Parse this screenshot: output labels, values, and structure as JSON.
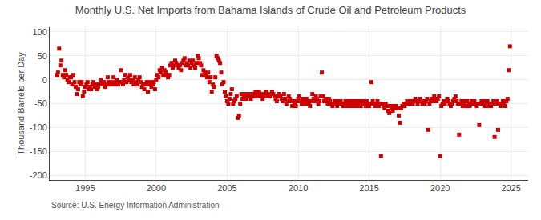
{
  "chart_data": {
    "type": "scatter",
    "title": "Monthly U.S. Net Imports from Bahama Islands of Crude Oil and Petroleum Products",
    "y_label": "Thousand Barrels per Day",
    "annotations": [
      "Source: U.S. Energy Information Administration"
    ],
    "color": "#cc0000",
    "marker": "square",
    "grid": true,
    "xlim": [
      1992.5,
      2026.2
    ],
    "ylim": [
      -210,
      110
    ],
    "xticks": [
      1995,
      2000,
      2005,
      2010,
      2015,
      2020,
      2025
    ],
    "yticks": [
      -200,
      -150,
      -100,
      -50,
      0,
      50,
      100
    ],
    "x": [
      1993.0,
      1993.083,
      1993.167,
      1993.25,
      1993.333,
      1993.417,
      1993.5,
      1993.583,
      1993.667,
      1993.75,
      1993.833,
      1993.917,
      1994.0,
      1994.083,
      1994.167,
      1994.25,
      1994.333,
      1994.417,
      1994.5,
      1994.583,
      1994.667,
      1994.75,
      1994.833,
      1994.917,
      1995.0,
      1995.083,
      1995.167,
      1995.25,
      1995.333,
      1995.417,
      1995.5,
      1995.583,
      1995.667,
      1995.75,
      1995.833,
      1995.917,
      1996.0,
      1996.083,
      1996.167,
      1996.25,
      1996.333,
      1996.417,
      1996.5,
      1996.583,
      1996.667,
      1996.75,
      1996.833,
      1996.917,
      1997.0,
      1997.083,
      1997.167,
      1997.25,
      1997.333,
      1997.417,
      1997.5,
      1997.583,
      1997.667,
      1997.75,
      1997.833,
      1997.917,
      1998.0,
      1998.083,
      1998.167,
      1998.25,
      1998.333,
      1998.417,
      1998.5,
      1998.583,
      1998.667,
      1998.75,
      1998.833,
      1998.917,
      1999.0,
      1999.083,
      1999.167,
      1999.25,
      1999.333,
      1999.417,
      1999.5,
      1999.583,
      1999.667,
      1999.75,
      1999.833,
      1999.917,
      2000.0,
      2000.083,
      2000.167,
      2000.25,
      2000.333,
      2000.417,
      2000.5,
      2000.583,
      2000.667,
      2000.75,
      2000.833,
      2000.917,
      2001.0,
      2001.083,
      2001.167,
      2001.25,
      2001.333,
      2001.417,
      2001.5,
      2001.583,
      2001.667,
      2001.75,
      2001.833,
      2001.917,
      2002.0,
      2002.083,
      2002.167,
      2002.25,
      2002.333,
      2002.417,
      2002.5,
      2002.583,
      2002.667,
      2002.75,
      2002.833,
      2002.917,
      2003.0,
      2003.083,
      2003.167,
      2003.25,
      2003.333,
      2003.417,
      2003.5,
      2003.583,
      2003.667,
      2003.75,
      2003.833,
      2003.917,
      2004.0,
      2004.083,
      2004.167,
      2004.25,
      2004.333,
      2004.417,
      2004.5,
      2004.583,
      2004.667,
      2004.75,
      2004.833,
      2004.917,
      2005.0,
      2005.083,
      2005.167,
      2005.25,
      2005.333,
      2005.417,
      2005.5,
      2005.583,
      2005.667,
      2005.75,
      2005.833,
      2005.917,
      2006.0,
      2006.083,
      2006.167,
      2006.25,
      2006.333,
      2006.417,
      2006.5,
      2006.583,
      2006.667,
      2006.75,
      2006.833,
      2006.917,
      2007.0,
      2007.083,
      2007.167,
      2007.25,
      2007.333,
      2007.417,
      2007.5,
      2007.583,
      2007.667,
      2007.75,
      2007.833,
      2007.917,
      2008.0,
      2008.083,
      2008.167,
      2008.25,
      2008.333,
      2008.417,
      2008.5,
      2008.583,
      2008.667,
      2008.75,
      2008.833,
      2008.917,
      2009.0,
      2009.083,
      2009.167,
      2009.25,
      2009.333,
      2009.417,
      2009.5,
      2009.583,
      2009.667,
      2009.75,
      2009.833,
      2009.917,
      2010.0,
      2010.083,
      2010.167,
      2010.25,
      2010.333,
      2010.417,
      2010.5,
      2010.583,
      2010.667,
      2010.75,
      2010.833,
      2010.917,
      2011.0,
      2011.083,
      2011.167,
      2011.25,
      2011.333,
      2011.417,
      2011.5,
      2011.583,
      2011.667,
      2011.75,
      2011.833,
      2011.917,
      2012.0,
      2012.083,
      2012.167,
      2012.25,
      2012.333,
      2012.417,
      2012.5,
      2012.583,
      2012.667,
      2012.75,
      2012.833,
      2012.917,
      2013.0,
      2013.083,
      2013.167,
      2013.25,
      2013.333,
      2013.417,
      2013.5,
      2013.583,
      2013.667,
      2013.75,
      2013.833,
      2013.917,
      2014.0,
      2014.083,
      2014.167,
      2014.25,
      2014.333,
      2014.417,
      2014.5,
      2014.583,
      2014.667,
      2014.75,
      2014.833,
      2014.917,
      2015.0,
      2015.083,
      2015.167,
      2015.25,
      2015.333,
      2015.417,
      2015.5,
      2015.583,
      2015.667,
      2015.75,
      2015.833,
      2015.917,
      2016.0,
      2016.083,
      2016.167,
      2016.25,
      2016.333,
      2016.417,
      2016.5,
      2016.583,
      2016.667,
      2016.75,
      2016.833,
      2016.917,
      2017.0,
      2017.083,
      2017.167,
      2017.25,
      2017.333,
      2017.417,
      2017.5,
      2017.583,
      2017.667,
      2017.75,
      2017.833,
      2017.917,
      2018.0,
      2018.083,
      2018.167,
      2018.25,
      2018.333,
      2018.417,
      2018.5,
      2018.583,
      2018.667,
      2018.75,
      2018.833,
      2018.917,
      2019.0,
      2019.083,
      2019.167,
      2019.25,
      2019.333,
      2019.417,
      2019.5,
      2019.583,
      2019.667,
      2019.75,
      2019.833,
      2019.917,
      2020.0,
      2020.083,
      2020.167,
      2020.25,
      2020.333,
      2020.417,
      2020.5,
      2020.583,
      2020.667,
      2020.75,
      2020.833,
      2020.917,
      2021.0,
      2021.083,
      2021.167,
      2021.25,
      2021.333,
      2021.417,
      2021.5,
      2021.583,
      2021.667,
      2021.75,
      2021.833,
      2021.917,
      2022.0,
      2022.083,
      2022.167,
      2022.25,
      2022.333,
      2022.417,
      2022.5,
      2022.583,
      2022.667,
      2022.75,
      2022.833,
      2022.917,
      2023.0,
      2023.083,
      2023.167,
      2023.25,
      2023.333,
      2023.417,
      2023.5,
      2023.583,
      2023.667,
      2023.75,
      2023.833,
      2023.917,
      2024.0,
      2024.083,
      2024.167,
      2024.25,
      2024.333,
      2024.417,
      2024.5,
      2024.583,
      2024.667,
      2024.75,
      2024.833,
      2024.917
    ],
    "values": [
      10,
      15,
      65,
      30,
      40,
      10,
      5,
      20,
      10,
      0,
      -5,
      5,
      5,
      -10,
      10,
      -5,
      -15,
      -30,
      -20,
      -5,
      -10,
      -5,
      -35,
      -25,
      -15,
      -10,
      -5,
      -20,
      -15,
      -20,
      -10,
      -5,
      -15,
      -10,
      -20,
      -15,
      -10,
      0,
      -5,
      -10,
      -5,
      -15,
      -10,
      5,
      -5,
      -10,
      -5,
      -10,
      5,
      -5,
      -10,
      0,
      -10,
      -5,
      20,
      -5,
      -10,
      0,
      10,
      -5,
      5,
      0,
      10,
      -5,
      0,
      -10,
      5,
      -5,
      -10,
      0,
      5,
      -5,
      -15,
      -10,
      -20,
      -10,
      -5,
      -25,
      -10,
      -5,
      -15,
      -10,
      -5,
      -20,
      0,
      10,
      5,
      20,
      15,
      25,
      10,
      20,
      15,
      10,
      5,
      10,
      30,
      35,
      25,
      30,
      40,
      35,
      30,
      25,
      30,
      20,
      35,
      40,
      45,
      30,
      35,
      30,
      40,
      25,
      35,
      40,
      30,
      25,
      35,
      50,
      45,
      35,
      30,
      10,
      20,
      15,
      10,
      5,
      15,
      -5,
      5,
      -25,
      -10,
      -15,
      5,
      50,
      45,
      40,
      35,
      15,
      -10,
      -5,
      -25,
      -35,
      -45,
      -50,
      -40,
      -30,
      -20,
      -50,
      -45,
      -40,
      -35,
      -80,
      -75,
      -50,
      -30,
      -40,
      -35,
      -30,
      -40,
      -35,
      -30,
      -35,
      -40,
      -30,
      -35,
      -30,
      -25,
      -35,
      -30,
      -25,
      -35,
      -30,
      -40,
      -35,
      -30,
      -25,
      -35,
      -30,
      -35,
      -30,
      -25,
      -30,
      -35,
      -40,
      -45,
      -35,
      -30,
      -35,
      -40,
      -45,
      -30,
      -40,
      -50,
      -45,
      -35,
      -40,
      -45,
      -55,
      -45,
      -50,
      -55,
      -45,
      -40,
      -35,
      -45,
      -50,
      -40,
      -45,
      -50,
      -40,
      -45,
      -50,
      -55,
      -45,
      -30,
      -40,
      -45,
      -35,
      -40,
      -50,
      -45,
      -35,
      15,
      -35,
      -45,
      -40,
      -45,
      -50,
      -40,
      -45,
      -50,
      -55,
      -50,
      -45,
      -50,
      -55,
      -45,
      -50,
      -45,
      -50,
      -55,
      -50,
      -45,
      -55,
      -50,
      -45,
      -55,
      -50,
      -45,
      -55,
      -50,
      -45,
      -55,
      -50,
      -45,
      -55,
      -50,
      -45,
      -50,
      -55,
      -45,
      -50,
      -55,
      -50,
      -5,
      -45,
      -50,
      -55,
      -50,
      -45,
      -55,
      -50,
      -160,
      -50,
      -55,
      -60,
      -50,
      -55,
      -65,
      -70,
      -55,
      -60,
      -65,
      -55,
      -60,
      -55,
      -60,
      -75,
      -90,
      -60,
      -55,
      -50,
      -55,
      -50,
      -45,
      -50,
      -45,
      -50,
      -45,
      -50,
      -45,
      -40,
      -45,
      -50,
      -45,
      -40,
      -45,
      -50,
      -45,
      -50,
      -45,
      -40,
      -105,
      -50,
      -45,
      -40,
      -45,
      -35,
      -40,
      -45,
      -40,
      -35,
      -160,
      -55,
      -50,
      -45,
      -50,
      -45,
      -40,
      -45,
      -50,
      -55,
      -50,
      -45,
      -40,
      -35,
      -45,
      -50,
      -115,
      -50,
      -45,
      -55,
      -50,
      -45,
      -55,
      -45,
      -50,
      -55,
      -50,
      -45,
      -50,
      -45,
      -50,
      -55,
      -50,
      -95,
      -50,
      -45,
      -50,
      -45,
      -55,
      -50,
      -45,
      -55,
      -50,
      -55,
      -50,
      -45,
      -120,
      -50,
      -45,
      -105,
      -50,
      -55,
      -50,
      -45,
      -50,
      -55,
      -45,
      -40,
      20,
      70
    ]
  }
}
